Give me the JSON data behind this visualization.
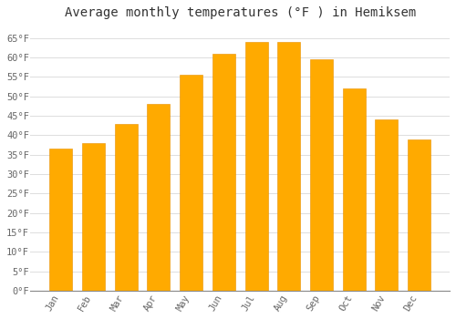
{
  "months": [
    "Jan",
    "Feb",
    "Mar",
    "Apr",
    "May",
    "Jun",
    "Jul",
    "Aug",
    "Sep",
    "Oct",
    "Nov",
    "Dec"
  ],
  "values": [
    36.5,
    38.0,
    43.0,
    48.0,
    55.5,
    61.0,
    64.0,
    64.0,
    59.5,
    52.0,
    44.0,
    39.0
  ],
  "bar_color": "#FFAA00",
  "bar_edge_color": "#E89000",
  "title": "Average monthly temperatures (°F ) in Hemiksem",
  "ylim": [
    0,
    68
  ],
  "yticks": [
    0,
    5,
    10,
    15,
    20,
    25,
    30,
    35,
    40,
    45,
    50,
    55,
    60,
    65
  ],
  "background_color": "#ffffff",
  "plot_bg_color": "#ffffff",
  "grid_color": "#dddddd",
  "title_fontsize": 10,
  "tick_fontsize": 7.5,
  "bar_width": 0.7,
  "font_family": "monospace"
}
